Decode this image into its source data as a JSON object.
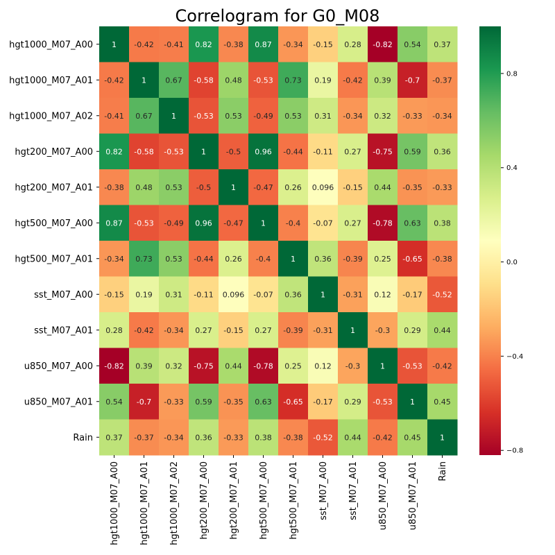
{
  "chart_data": {
    "type": "heatmap",
    "title": "Correlogram for G0_M08",
    "xlabel": "",
    "ylabel": "",
    "variables": [
      "hgt1000_M07_A00",
      "hgt1000_M07_A01",
      "hgt1000_M07_A02",
      "hgt200_M07_A00",
      "hgt200_M07_A01",
      "hgt500_M07_A00",
      "hgt500_M07_A01",
      "sst_M07_A00",
      "sst_M07_A01",
      "u850_M07_A00",
      "u850_M07_A01",
      "Rain"
    ],
    "matrix": [
      [
        1,
        -0.42,
        -0.41,
        0.82,
        -0.38,
        0.87,
        -0.34,
        -0.15,
        0.28,
        -0.82,
        0.54,
        0.37
      ],
      [
        -0.42,
        1,
        0.67,
        -0.58,
        0.48,
        -0.53,
        0.73,
        0.19,
        -0.42,
        0.39,
        -0.7,
        -0.37
      ],
      [
        -0.41,
        0.67,
        1,
        -0.53,
        0.53,
        -0.49,
        0.53,
        0.31,
        -0.34,
        0.32,
        -0.33,
        -0.34
      ],
      [
        0.82,
        -0.58,
        -0.53,
        1,
        -0.5,
        0.96,
        -0.44,
        -0.11,
        0.27,
        -0.75,
        0.59,
        0.36
      ],
      [
        -0.38,
        0.48,
        0.53,
        -0.5,
        1,
        -0.47,
        0.26,
        0.096,
        -0.15,
        0.44,
        -0.35,
        -0.33
      ],
      [
        0.87,
        -0.53,
        -0.49,
        0.96,
        -0.47,
        1,
        -0.4,
        -0.07,
        0.27,
        -0.78,
        0.63,
        0.38
      ],
      [
        -0.34,
        0.73,
        0.53,
        -0.44,
        0.26,
        -0.4,
        1,
        0.36,
        -0.39,
        0.25,
        -0.65,
        -0.38
      ],
      [
        -0.15,
        0.19,
        0.31,
        -0.11,
        0.096,
        -0.07,
        0.36,
        1,
        -0.31,
        0.12,
        -0.17,
        -0.52
      ],
      [
        0.28,
        -0.42,
        -0.34,
        0.27,
        -0.15,
        0.27,
        -0.39,
        -0.31,
        1,
        -0.3,
        0.29,
        0.44
      ],
      [
        -0.82,
        0.39,
        0.32,
        -0.75,
        0.44,
        -0.78,
        0.25,
        0.12,
        -0.3,
        1,
        -0.53,
        -0.42
      ],
      [
        0.54,
        -0.7,
        -0.33,
        0.59,
        -0.35,
        0.63,
        -0.65,
        -0.17,
        0.29,
        -0.53,
        1,
        0.45
      ],
      [
        0.37,
        -0.37,
        -0.34,
        0.36,
        -0.33,
        0.38,
        -0.38,
        -0.52,
        0.44,
        -0.42,
        0.45,
        1
      ]
    ],
    "colormap": "RdYlGn",
    "color_range": [
      -0.82,
      1
    ],
    "colorbar_ticks": [
      "0.8",
      "0.4",
      "0.0",
      "−0.4",
      "−0.8"
    ],
    "annotations": true
  }
}
